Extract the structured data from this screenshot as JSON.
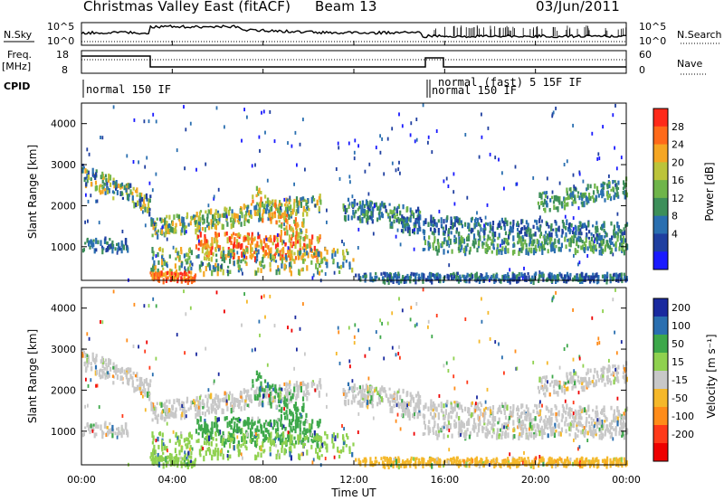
{
  "header": {
    "radar": "Christmas Valley East (fitACF)",
    "beam": "Beam 13",
    "date": "03/Jun/2011"
  },
  "colors": {
    "power": [
      "#1a1aff",
      "#1f3fa0",
      "#2a6fb0",
      "#3d8f5a",
      "#6fb54a",
      "#bcc43a",
      "#f5a623",
      "#ff6a1a",
      "#ff2a1a"
    ],
    "velocity": [
      "#1a2a9f",
      "#2a6fb0",
      "#3da84a",
      "#8fd14f",
      "#c8c8c8",
      "#f5b82a",
      "#ff8c1a",
      "#ff3a1a",
      "#ee0000"
    ]
  },
  "chart_data": [
    {
      "type": "line",
      "name": "noise-panel",
      "left_label": "N.Sky",
      "right_label": "N.Search",
      "left_ticks": [
        "10^5",
        "10^0"
      ],
      "right_ticks": [
        "10^5",
        "10^0"
      ]
    },
    {
      "type": "line",
      "name": "freq-panel",
      "left_label_1": "Freq.",
      "left_label_2": "[MHz]",
      "right_label": "Nave",
      "left_ticks": [
        "18",
        "8"
      ],
      "right_ticks": [
        "60",
        "0"
      ]
    },
    {
      "type": "table",
      "name": "cpid-strip",
      "label": "CPID",
      "entries": [
        {
          "time_h": 0.0,
          "text": "normal 150 IF"
        },
        {
          "time_h": 15.1,
          "text": "normal 150 IF"
        },
        {
          "time_h": 15.2,
          "text": "normal (fast) 5 15F IF"
        }
      ]
    },
    {
      "type": "heatmap",
      "name": "power-panel",
      "ylabel": "Slant Range [km]",
      "yticks": [
        1000,
        2000,
        3000,
        4000
      ],
      "ylim": [
        180,
        4500
      ],
      "xlim": [
        0,
        24
      ],
      "colorbar_label": "Power [dB]",
      "colorbar_ticks": [
        "28",
        "24",
        "20",
        "16",
        "12",
        "8",
        "4"
      ]
    },
    {
      "type": "heatmap",
      "name": "velocity-panel",
      "ylabel": "Slant Range [km]",
      "yticks": [
        1000,
        2000,
        3000,
        4000
      ],
      "ylim": [
        180,
        4500
      ],
      "xlim": [
        0,
        24
      ],
      "colorbar_label": "Velocity [m s⁻¹]",
      "colorbar_ticks": [
        "200",
        "100",
        "50",
        "15",
        "-15",
        "-50",
        "-100",
        "-200"
      ]
    }
  ],
  "xaxis": {
    "label": "Time UT",
    "ticks": [
      "00:00",
      "04:00",
      "08:00",
      "12:00",
      "16:00",
      "20:00",
      "00:00"
    ],
    "tick_hours": [
      0,
      4,
      8,
      12,
      16,
      20,
      24
    ]
  }
}
